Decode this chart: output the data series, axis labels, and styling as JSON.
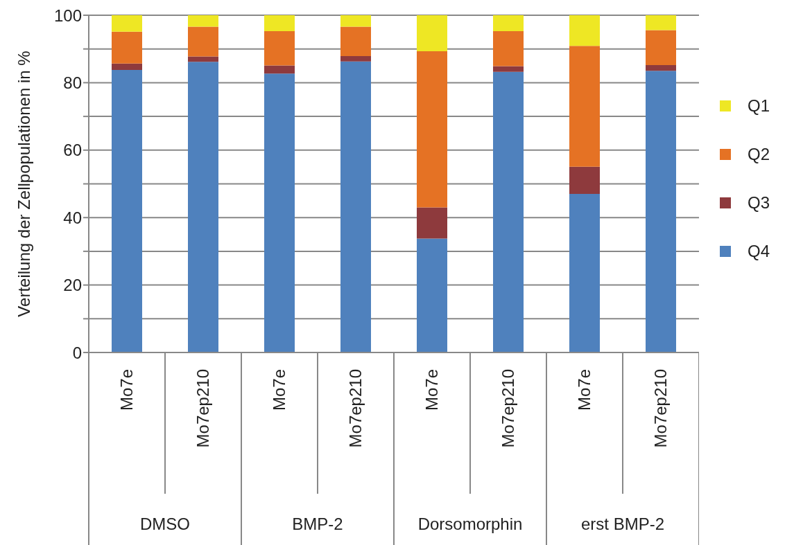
{
  "chart_data": {
    "type": "bar",
    "stacked": true,
    "ylabel": "Verteilung der Zellpopulationen in %",
    "categories": [
      "Mo7e",
      "Mo7ep210",
      "Mo7e",
      "Mo7ep210",
      "Mo7e",
      "Mo7ep210",
      "Mo7e",
      "Mo7ep210"
    ],
    "annotations": [
      "DMSO",
      "BMP-2",
      "Dorsomorphin",
      "erst BMP-2"
    ],
    "series": [
      {
        "name": "Q4",
        "color": "#4f81bd",
        "values": [
          83.8,
          86.2,
          82.7,
          86.3,
          33.8,
          83.2,
          47.0,
          83.5
        ]
      },
      {
        "name": "Q3",
        "color": "#8e3a3d",
        "values": [
          1.9,
          1.6,
          2.4,
          1.6,
          9.2,
          1.7,
          8.1,
          1.7
        ]
      },
      {
        "name": "Q2",
        "color": "#e57224",
        "values": [
          9.4,
          8.8,
          10.2,
          8.7,
          46.3,
          10.4,
          35.8,
          10.4
        ]
      },
      {
        "name": "Q1",
        "color": "#eee724",
        "values": [
          4.9,
          3.4,
          4.7,
          3.4,
          10.7,
          4.7,
          9.1,
          4.4
        ]
      }
    ],
    "ylim": [
      0,
      100
    ],
    "yticks": [
      0,
      {
        "value": 10,
        "label": null
      },
      20,
      {
        "value": 30,
        "label": null
      },
      40,
      {
        "value": 50,
        "label": null
      },
      60,
      {
        "value": 70,
        "label": null
      },
      80,
      {
        "value": 90,
        "label": null
      },
      100
    ],
    "grid": "y",
    "legend": "right"
  }
}
